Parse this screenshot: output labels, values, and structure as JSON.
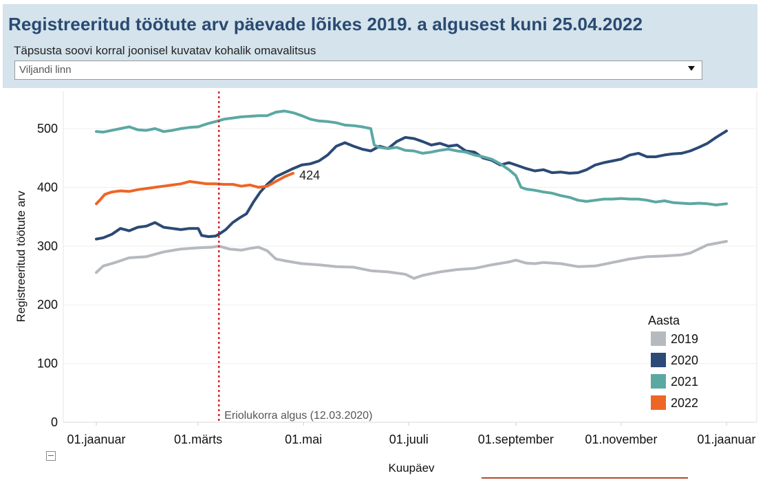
{
  "header": {
    "title": "Registreeritud töötute arv päevade lõikes 2019. a algusest kuni 25.04.2022",
    "filter_label": "Täpsusta soovi korral  joonisel kuvatav kohalik omavalitsus",
    "dropdown_value": "Viljandi linn"
  },
  "colors": {
    "2019": "#b6babf",
    "2020": "#2b4a75",
    "2021": "#5ba8a3",
    "2022": "#ec6626",
    "event_line": "#d9222a",
    "header_bg": "#d4e3ec"
  },
  "chart_data": {
    "type": "line",
    "title": "Registreeritud töötute arv päevade lõikes 2019. a algusest kuni 25.04.2022",
    "xlabel": "Kuupäev",
    "ylabel": "Registreeritud töötute arv",
    "x_unit": "day of year",
    "xlim": [
      1,
      366
    ],
    "ylim": [
      0,
      550
    ],
    "yticks": [
      0,
      100,
      200,
      300,
      400,
      500
    ],
    "xticks": [
      {
        "day": 1,
        "label": "01.jaanuar"
      },
      {
        "day": 60,
        "label": "01.märts"
      },
      {
        "day": 121,
        "label": "01.mai"
      },
      {
        "day": 182,
        "label": "01.juuli"
      },
      {
        "day": 244,
        "label": "01.september"
      },
      {
        "day": 305,
        "label": "01.november"
      },
      {
        "day": 366,
        "label": "01.jaanuar"
      }
    ],
    "grid": true,
    "legend": {
      "title": "Aasta",
      "position": "right"
    },
    "event": {
      "day": 72,
      "label": "Eriolukorra algus (12.03.2020)"
    },
    "end_label": {
      "series": "2022",
      "day": 115,
      "value": 424,
      "text": "424"
    },
    "series": [
      {
        "name": "2019",
        "color": "#b6babf",
        "points": [
          [
            1,
            255
          ],
          [
            5,
            266
          ],
          [
            12,
            272
          ],
          [
            20,
            280
          ],
          [
            30,
            282
          ],
          [
            40,
            290
          ],
          [
            50,
            295
          ],
          [
            60,
            297
          ],
          [
            68,
            298
          ],
          [
            72,
            300
          ],
          [
            78,
            295
          ],
          [
            85,
            293
          ],
          [
            90,
            296
          ],
          [
            95,
            298
          ],
          [
            100,
            292
          ],
          [
            105,
            278
          ],
          [
            110,
            275
          ],
          [
            120,
            270
          ],
          [
            130,
            268
          ],
          [
            140,
            265
          ],
          [
            150,
            264
          ],
          [
            160,
            258
          ],
          [
            170,
            256
          ],
          [
            180,
            252
          ],
          [
            185,
            245
          ],
          [
            190,
            250
          ],
          [
            200,
            256
          ],
          [
            210,
            260
          ],
          [
            220,
            262
          ],
          [
            230,
            268
          ],
          [
            240,
            273
          ],
          [
            244,
            276
          ],
          [
            250,
            271
          ],
          [
            255,
            270
          ],
          [
            260,
            272
          ],
          [
            270,
            270
          ],
          [
            280,
            265
          ],
          [
            290,
            266
          ],
          [
            300,
            272
          ],
          [
            310,
            278
          ],
          [
            320,
            282
          ],
          [
            330,
            283
          ],
          [
            340,
            285
          ],
          [
            345,
            288
          ],
          [
            355,
            302
          ],
          [
            366,
            308
          ]
        ]
      },
      {
        "name": "2020",
        "color": "#2b4a75",
        "points": [
          [
            1,
            312
          ],
          [
            5,
            314
          ],
          [
            10,
            320
          ],
          [
            15,
            330
          ],
          [
            20,
            326
          ],
          [
            25,
            332
          ],
          [
            30,
            334
          ],
          [
            35,
            340
          ],
          [
            40,
            332
          ],
          [
            45,
            330
          ],
          [
            50,
            328
          ],
          [
            55,
            330
          ],
          [
            60,
            330
          ],
          [
            62,
            318
          ],
          [
            66,
            316
          ],
          [
            70,
            317
          ],
          [
            72,
            320
          ],
          [
            76,
            328
          ],
          [
            80,
            340
          ],
          [
            84,
            348
          ],
          [
            88,
            355
          ],
          [
            92,
            375
          ],
          [
            96,
            392
          ],
          [
            100,
            405
          ],
          [
            105,
            418
          ],
          [
            110,
            425
          ],
          [
            115,
            432
          ],
          [
            120,
            438
          ],
          [
            125,
            440
          ],
          [
            130,
            445
          ],
          [
            135,
            455
          ],
          [
            140,
            470
          ],
          [
            145,
            476
          ],
          [
            150,
            470
          ],
          [
            155,
            465
          ],
          [
            160,
            462
          ],
          [
            165,
            470
          ],
          [
            170,
            466
          ],
          [
            175,
            478
          ],
          [
            180,
            485
          ],
          [
            185,
            483
          ],
          [
            190,
            478
          ],
          [
            195,
            472
          ],
          [
            200,
            475
          ],
          [
            205,
            470
          ],
          [
            210,
            472
          ],
          [
            215,
            462
          ],
          [
            220,
            460
          ],
          [
            225,
            450
          ],
          [
            230,
            446
          ],
          [
            235,
            438
          ],
          [
            240,
            442
          ],
          [
            244,
            438
          ],
          [
            250,
            432
          ],
          [
            255,
            428
          ],
          [
            260,
            430
          ],
          [
            265,
            425
          ],
          [
            270,
            426
          ],
          [
            275,
            424
          ],
          [
            280,
            425
          ],
          [
            285,
            430
          ],
          [
            290,
            438
          ],
          [
            295,
            442
          ],
          [
            300,
            445
          ],
          [
            305,
            448
          ],
          [
            310,
            455
          ],
          [
            315,
            458
          ],
          [
            320,
            452
          ],
          [
            325,
            452
          ],
          [
            330,
            455
          ],
          [
            335,
            457
          ],
          [
            340,
            458
          ],
          [
            345,
            462
          ],
          [
            350,
            468
          ],
          [
            355,
            475
          ],
          [
            360,
            485
          ],
          [
            366,
            496
          ]
        ]
      },
      {
        "name": "2021",
        "color": "#5ba8a3",
        "points": [
          [
            1,
            495
          ],
          [
            5,
            494
          ],
          [
            10,
            497
          ],
          [
            15,
            500
          ],
          [
            20,
            503
          ],
          [
            25,
            498
          ],
          [
            30,
            497
          ],
          [
            35,
            500
          ],
          [
            40,
            495
          ],
          [
            45,
            497
          ],
          [
            50,
            500
          ],
          [
            55,
            502
          ],
          [
            60,
            503
          ],
          [
            65,
            508
          ],
          [
            70,
            512
          ],
          [
            75,
            516
          ],
          [
            80,
            518
          ],
          [
            85,
            520
          ],
          [
            90,
            521
          ],
          [
            95,
            522
          ],
          [
            100,
            522
          ],
          [
            105,
            528
          ],
          [
            110,
            530
          ],
          [
            115,
            527
          ],
          [
            120,
            522
          ],
          [
            125,
            516
          ],
          [
            130,
            513
          ],
          [
            135,
            512
          ],
          [
            140,
            510
          ],
          [
            145,
            506
          ],
          [
            150,
            505
          ],
          [
            155,
            503
          ],
          [
            160,
            500
          ],
          [
            162,
            472
          ],
          [
            165,
            468
          ],
          [
            170,
            466
          ],
          [
            175,
            468
          ],
          [
            180,
            463
          ],
          [
            185,
            462
          ],
          [
            190,
            458
          ],
          [
            195,
            460
          ],
          [
            200,
            463
          ],
          [
            205,
            465
          ],
          [
            210,
            462
          ],
          [
            215,
            460
          ],
          [
            220,
            455
          ],
          [
            225,
            452
          ],
          [
            230,
            448
          ],
          [
            235,
            440
          ],
          [
            240,
            430
          ],
          [
            244,
            420
          ],
          [
            247,
            400
          ],
          [
            250,
            397
          ],
          [
            255,
            395
          ],
          [
            260,
            392
          ],
          [
            265,
            390
          ],
          [
            270,
            386
          ],
          [
            275,
            383
          ],
          [
            280,
            378
          ],
          [
            285,
            376
          ],
          [
            290,
            378
          ],
          [
            295,
            380
          ],
          [
            300,
            380
          ],
          [
            305,
            381
          ],
          [
            310,
            380
          ],
          [
            315,
            380
          ],
          [
            320,
            378
          ],
          [
            325,
            375
          ],
          [
            330,
            377
          ],
          [
            335,
            374
          ],
          [
            340,
            373
          ],
          [
            345,
            372
          ],
          [
            350,
            373
          ],
          [
            355,
            372
          ],
          [
            360,
            370
          ],
          [
            366,
            372
          ]
        ]
      },
      {
        "name": "2022",
        "color": "#ec6626",
        "points": [
          [
            1,
            372
          ],
          [
            3,
            378
          ],
          [
            6,
            388
          ],
          [
            10,
            392
          ],
          [
            15,
            394
          ],
          [
            20,
            393
          ],
          [
            25,
            396
          ],
          [
            30,
            398
          ],
          [
            35,
            400
          ],
          [
            40,
            402
          ],
          [
            45,
            404
          ],
          [
            50,
            406
          ],
          [
            55,
            410
          ],
          [
            60,
            408
          ],
          [
            65,
            406
          ],
          [
            70,
            406
          ],
          [
            75,
            405
          ],
          [
            80,
            405
          ],
          [
            85,
            402
          ],
          [
            90,
            404
          ],
          [
            95,
            400
          ],
          [
            100,
            402
          ],
          [
            105,
            410
          ],
          [
            110,
            418
          ],
          [
            115,
            424
          ]
        ]
      }
    ]
  }
}
